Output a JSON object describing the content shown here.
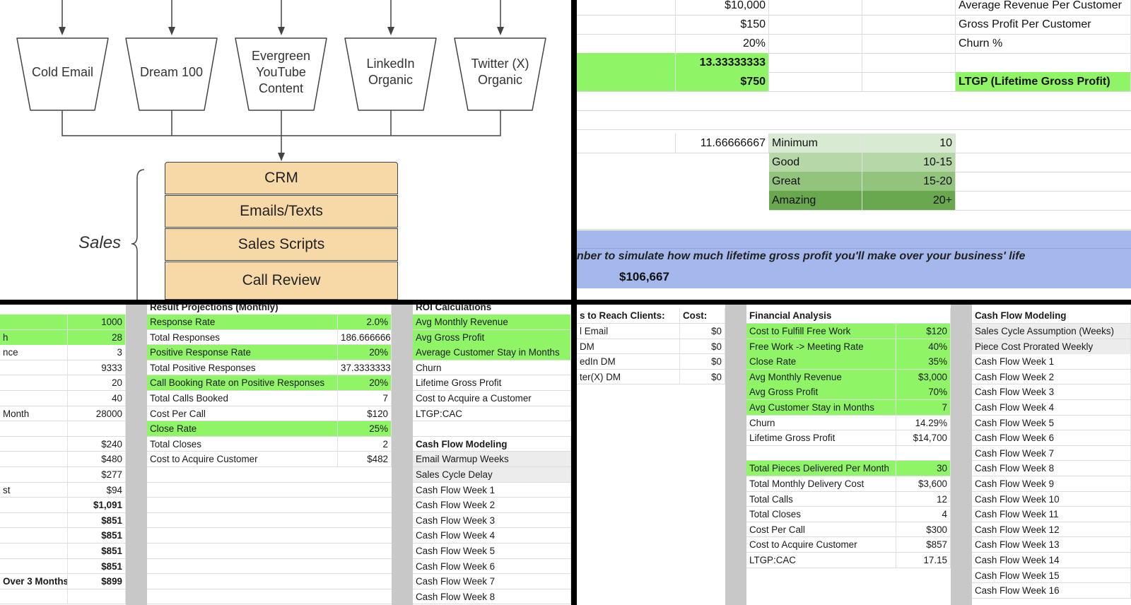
{
  "diagram": {
    "channels": [
      "Cold Email",
      "Dream 100",
      "Evergreen\nYouTube\nContent",
      "LinkedIn\nOrganic",
      "Twitter (X)\nOrganic"
    ],
    "stack": [
      "CRM",
      "Emails/Texts",
      "Sales Scripts",
      "Call Review"
    ],
    "group_label": "Sales"
  },
  "ltgp_sheet": {
    "rows": [
      {
        "value": "$10,000",
        "label": "Average Revenue Per Customer"
      },
      {
        "value": "$150",
        "label": "Gross Profit Per Customer"
      },
      {
        "value": "20%",
        "label": "Churn %"
      },
      {
        "value": "13.33333333",
        "label": ""
      },
      {
        "value": "$750",
        "label": "LTGP (Lifetime Gross Profit)"
      }
    ],
    "ratio_value": "11.66666667",
    "tiers": [
      {
        "name": "Minimum",
        "range": "10",
        "color": "#d9ead3"
      },
      {
        "name": "Good",
        "range": "10-15",
        "color": "#b6d7a8"
      },
      {
        "name": "Great",
        "range": "15-20",
        "color": "#93c47d"
      },
      {
        "name": "Amazing",
        "range": "20+",
        "color": "#6aa84f"
      }
    ],
    "note": "nber to simulate how much lifetime gross profit you'll make over your business' life",
    "total": "$106,667"
  },
  "cold_email_sheet": {
    "left": [
      {
        "label": "",
        "value": "1000"
      },
      {
        "label": "h",
        "value": "28"
      },
      {
        "label": "nce",
        "value": "3"
      },
      {
        "label": "",
        "value": "9333"
      },
      {
        "label": "",
        "value": "20"
      },
      {
        "label": "",
        "value": "40"
      },
      {
        "label": "Month",
        "value": "28000"
      },
      {
        "label": "",
        "value": ""
      },
      {
        "label": "",
        "value": "$240"
      },
      {
        "label": "",
        "value": "$480"
      },
      {
        "label": "",
        "value": "$277"
      },
      {
        "label": "st",
        "value": "$94"
      },
      {
        "label": "",
        "value": "$1,091"
      },
      {
        "label": "",
        "value": "$851"
      },
      {
        "label": "",
        "value": "$851"
      },
      {
        "label": "",
        "value": "$851"
      },
      {
        "label": "",
        "value": "$851"
      },
      {
        "label": "Over 3 Months",
        "value": "$899"
      },
      {
        "label": "",
        "value": ""
      }
    ],
    "projections_title": "Result Projections (Monthly)",
    "projections": [
      {
        "label": "Response Rate",
        "value": "2.0%"
      },
      {
        "label": "Total Responses",
        "value": "186.666666"
      },
      {
        "label": "Positive Response Rate",
        "value": "20%"
      },
      {
        "label": "Total Positive Responses",
        "value": "37.3333333"
      },
      {
        "label": "Call Booking Rate on Positive Responses",
        "value": "20%"
      },
      {
        "label": "Total Calls Booked",
        "value": "7"
      },
      {
        "label": "Cost Per Call",
        "value": "$120"
      },
      {
        "label": "Close Rate",
        "value": "25%"
      },
      {
        "label": "Total Closes",
        "value": "2"
      },
      {
        "label": "Cost to Acquire Customer",
        "value": "$482"
      }
    ],
    "roi_title": "ROI Calculations",
    "roi": [
      "Avg Monthly Revenue",
      "Avg Gross Profit",
      "Average Customer Stay in Months",
      "Churn",
      "Lifetime Gross Profit",
      "Cost to Acquire a Customer",
      "LTGP:CAC"
    ],
    "cashflow_title": "Cash Flow Modeling",
    "cashflow": [
      "Email Warmup Weeks",
      "Sales Cycle Delay",
      "Cash Flow Week 1",
      "Cash Flow Week 2",
      "Cash Flow Week 3",
      "Cash Flow Week 4",
      "Cash Flow Week 5",
      "Cash Flow Week 6",
      "Cash Flow Week 7",
      "Cash Flow Week 8"
    ]
  },
  "free_work_sheet": {
    "channels_header": "s to Reach Clients:",
    "cost_header": "Cost:",
    "channels": [
      {
        "label": "l Email",
        "cost": "$0"
      },
      {
        "label": "DM",
        "cost": "$0"
      },
      {
        "label": "edIn DM",
        "cost": "$0"
      },
      {
        "label": "ter(X) DM",
        "cost": "$0"
      }
    ],
    "financial_title": "Financial Analysis",
    "financial": [
      {
        "label": "Cost to Fulfill Free Work",
        "value": "$120"
      },
      {
        "label": "Free Work -> Meeting Rate",
        "value": "40%"
      },
      {
        "label": "Close Rate",
        "value": "35%"
      },
      {
        "label": "Avg Monthly Revenue",
        "value": "$3,000"
      },
      {
        "label": "Avg Gross Profit",
        "value": "70%"
      },
      {
        "label": "Avg Customer Stay in Months",
        "value": "7"
      },
      {
        "label": "Churn",
        "value": "14.29%"
      },
      {
        "label": "Lifetime Gross Profit",
        "value": "$14,700"
      },
      {
        "label": "",
        "value": ""
      },
      {
        "label": "Total Pieces Delivered Per Month",
        "value": "30"
      },
      {
        "label": "Total Monthly Delivery Cost",
        "value": "$3,600"
      },
      {
        "label": "Total Calls",
        "value": "12"
      },
      {
        "label": "Total Closes",
        "value": "4"
      },
      {
        "label": "Cost Per Call",
        "value": "$300"
      },
      {
        "label": "Cost to Acquire Customer",
        "value": "$857"
      },
      {
        "label": "LTGP:CAC",
        "value": "17.15"
      }
    ],
    "cashflow_title": "Cash Flow Modeling",
    "cashflow": [
      "Sales Cycle Assumption (Weeks)",
      "Piece Cost Prorated Weekly",
      "Cash Flow Week 1",
      "Cash Flow Week 2",
      "Cash Flow Week 3",
      "Cash Flow Week 4",
      "Cash Flow Week 5",
      "Cash Flow Week 6",
      "Cash Flow Week 7",
      "Cash Flow Week 8",
      "Cash Flow Week 9",
      "Cash Flow Week 10",
      "Cash Flow Week 11",
      "Cash Flow Week 12",
      "Cash Flow Week 13",
      "Cash Flow Week 14",
      "Cash Flow Week 15",
      "Cash Flow Week 16"
    ]
  },
  "colors": {
    "highlight_green": "#8ff566",
    "band_blue": "#a4b8ed",
    "stack_fill": "#f7d9a8"
  }
}
